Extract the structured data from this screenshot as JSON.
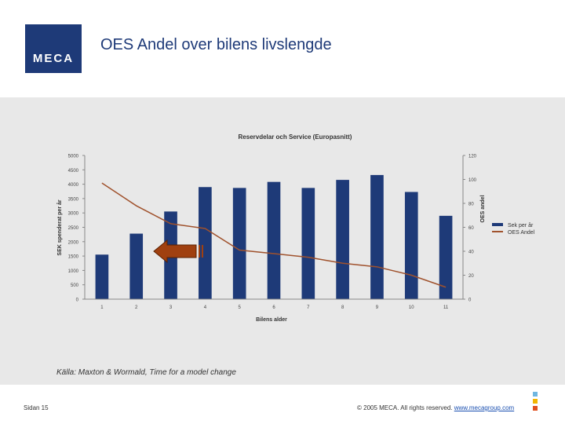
{
  "logo": {
    "text": "MECA"
  },
  "slide_title": "OES Andel over bilens livslengde",
  "source": "Källa: Maxton & Wormald, Time for a model change",
  "footer": {
    "page": "Sidan 15",
    "copyright": "© 2005 MECA. All rights reserved.",
    "link": "www.mecagroup.com"
  },
  "colors": {
    "bar": "#1e3a78",
    "line": "#a0522d",
    "arrow": "#a04010",
    "panel": "#e8e8e8"
  },
  "chart_data": {
    "type": "bar",
    "title": "Reservdelar och Service (Europasnitt)",
    "xlabel": "Bilens alder",
    "ylabel": "SEK spenderat per år",
    "y2label": "OES andel",
    "categories": [
      "1",
      "2",
      "3",
      "4",
      "5",
      "6",
      "7",
      "8",
      "9",
      "10",
      "11"
    ],
    "ylim": [
      0,
      5000
    ],
    "yticks": [
      "0",
      "500",
      "1000",
      "1500",
      "2000",
      "2500",
      "3000",
      "3500",
      "4000",
      "4500",
      "5000"
    ],
    "y2lim": [
      0,
      120
    ],
    "y2ticks": [
      "0",
      "20",
      "40",
      "60",
      "80",
      "100",
      "120"
    ],
    "grid": false,
    "legend_position": "right",
    "series": [
      {
        "name": "Sek per år",
        "kind": "bar",
        "axis": "left",
        "values": [
          1550,
          2280,
          3050,
          3900,
          3870,
          4080,
          3870,
          4150,
          4320,
          3730,
          2900
        ]
      },
      {
        "name": "OES Andel",
        "kind": "line",
        "axis": "right",
        "values": [
          97,
          78,
          63,
          59,
          41,
          38,
          35,
          30,
          27,
          20,
          10
        ]
      }
    ]
  }
}
